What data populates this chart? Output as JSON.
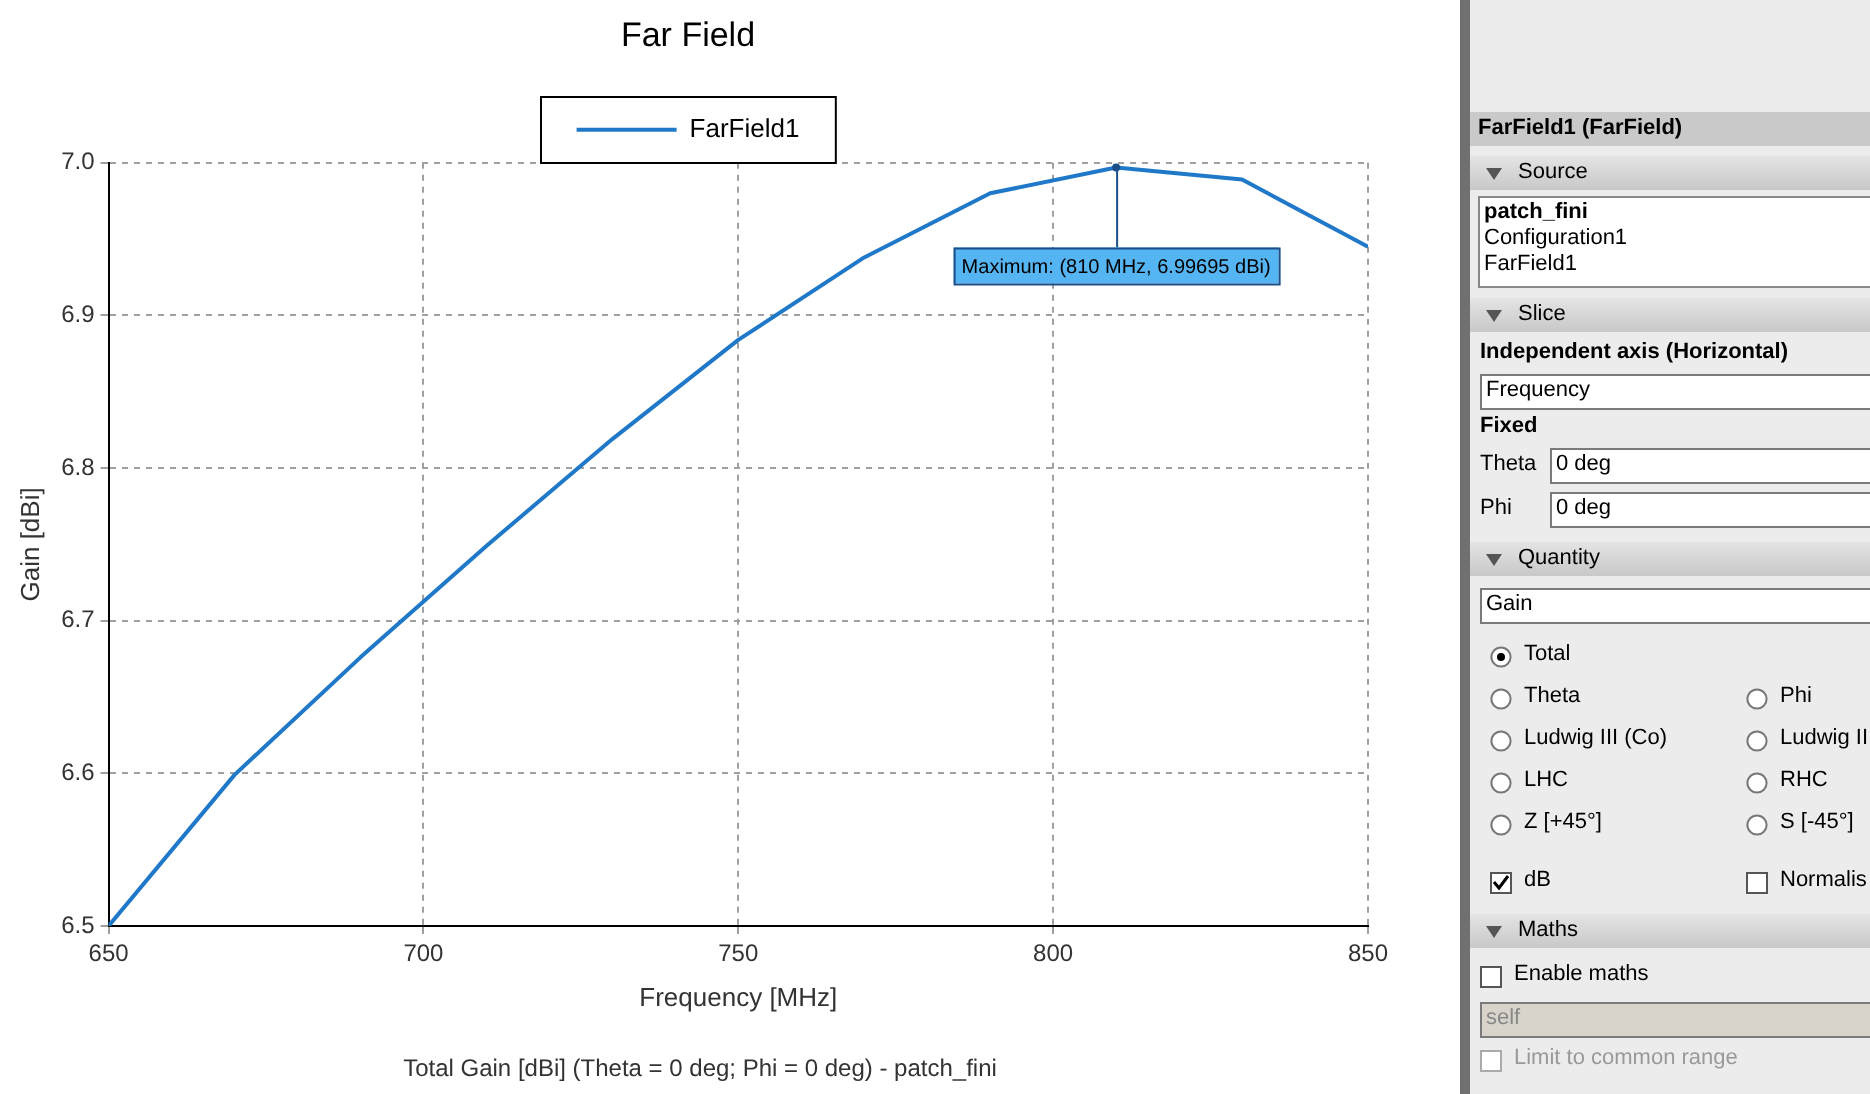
{
  "chart_data": {
    "type": "line",
    "title": "Far Field",
    "xlabel": "Frequency [MHz]",
    "ylabel": "Gain [dBi]",
    "x": [
      650,
      670,
      690,
      710,
      730,
      750,
      770,
      790,
      810,
      830,
      850
    ],
    "series": [
      {
        "name": "FarField1",
        "color": "#1f78c8",
        "values": [
          6.5,
          6.599,
          6.676,
          6.749,
          6.819,
          6.884,
          6.938,
          6.98,
          6.99695,
          6.989,
          6.945
        ]
      }
    ],
    "xlim": [
      650,
      850
    ],
    "xticks": [
      650,
      700,
      750,
      800,
      850
    ],
    "ylim": [
      6.5,
      7.0
    ],
    "yticks": [
      6.5,
      6.6,
      6.7,
      6.8,
      6.9,
      {
        "value": 7,
        "label": "7.0"
      }
    ],
    "grid": true,
    "legend": "top",
    "marker": "none",
    "line_style": "solid",
    "annotations": [
      {
        "text": "Maximum: (810 MHz, 6.99695 dBi)",
        "x": 810,
        "y": 6.99695
      },
      "Total Gain [dBi] (Theta = 0 deg; Phi = 0 deg) - patch_fini",
      "FarField1 (FarField)",
      "Source",
      "patch_fini",
      "Configuration1",
      "FarField1",
      "Slice",
      "Independent axis (Horizontal)",
      "Frequency",
      "Fixed",
      "Theta",
      "0 deg",
      "Phi",
      "0 deg",
      "Quantity",
      "Gain",
      "Total",
      "Theta",
      "Phi",
      "Ludwig III (Co)",
      "Ludwig II",
      "LHC",
      "RHC",
      "Z [+45°]",
      "S [-45°]",
      "dB",
      "Normalis",
      "Maths",
      "Enable maths",
      "self",
      "Limit to common range"
    ]
  }
}
